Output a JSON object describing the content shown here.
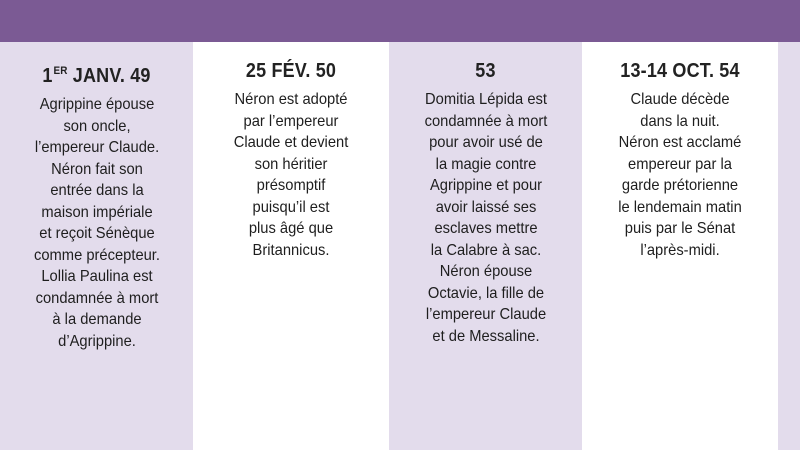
{
  "timeline": [
    {
      "date_main": "1",
      "date_sup": "ER",
      "date_rest": " JANV. 49",
      "text": "Agrippine épouse\nson oncle,\nl’empereur Claude.\nNéron fait son\nentrée dans la\nmaison impériale\net reçoit Sénèque\ncomme précepteur.\nLollia Paulina est\ncondamnée à mort\nà la demande\nd’Agrippine."
    },
    {
      "date": "25 FÉV. 50",
      "text": "Néron est adopté\npar l’empereur\nClaude et devient\nson héritier\nprésomptif\npuisqu’il est\nplus âgé que\nBritannicus."
    },
    {
      "date": "53",
      "text": "Domitia Lépida est\ncondamnée à mort\npour avoir usé de\nla magie contre\nAgrippine et pour\navoir laissé ses\nesclaves mettre\nla Calabre à sac.\nNéron épouse\nOctavie, la fille de\nl’empereur Claude\net de Messaline."
    },
    {
      "date": "13-14 OCT. 54",
      "text": "Claude décède\ndans la nuit.\nNéron est acclamé\nempereur par la\ngarde prétorienne\nle lendemain matin\npuis par le Sénat\nl’après-midi."
    }
  ],
  "colors": {
    "header_bar": "#7b5a94",
    "column_tint": "#e3dcec",
    "text": "#1e1e1e"
  }
}
